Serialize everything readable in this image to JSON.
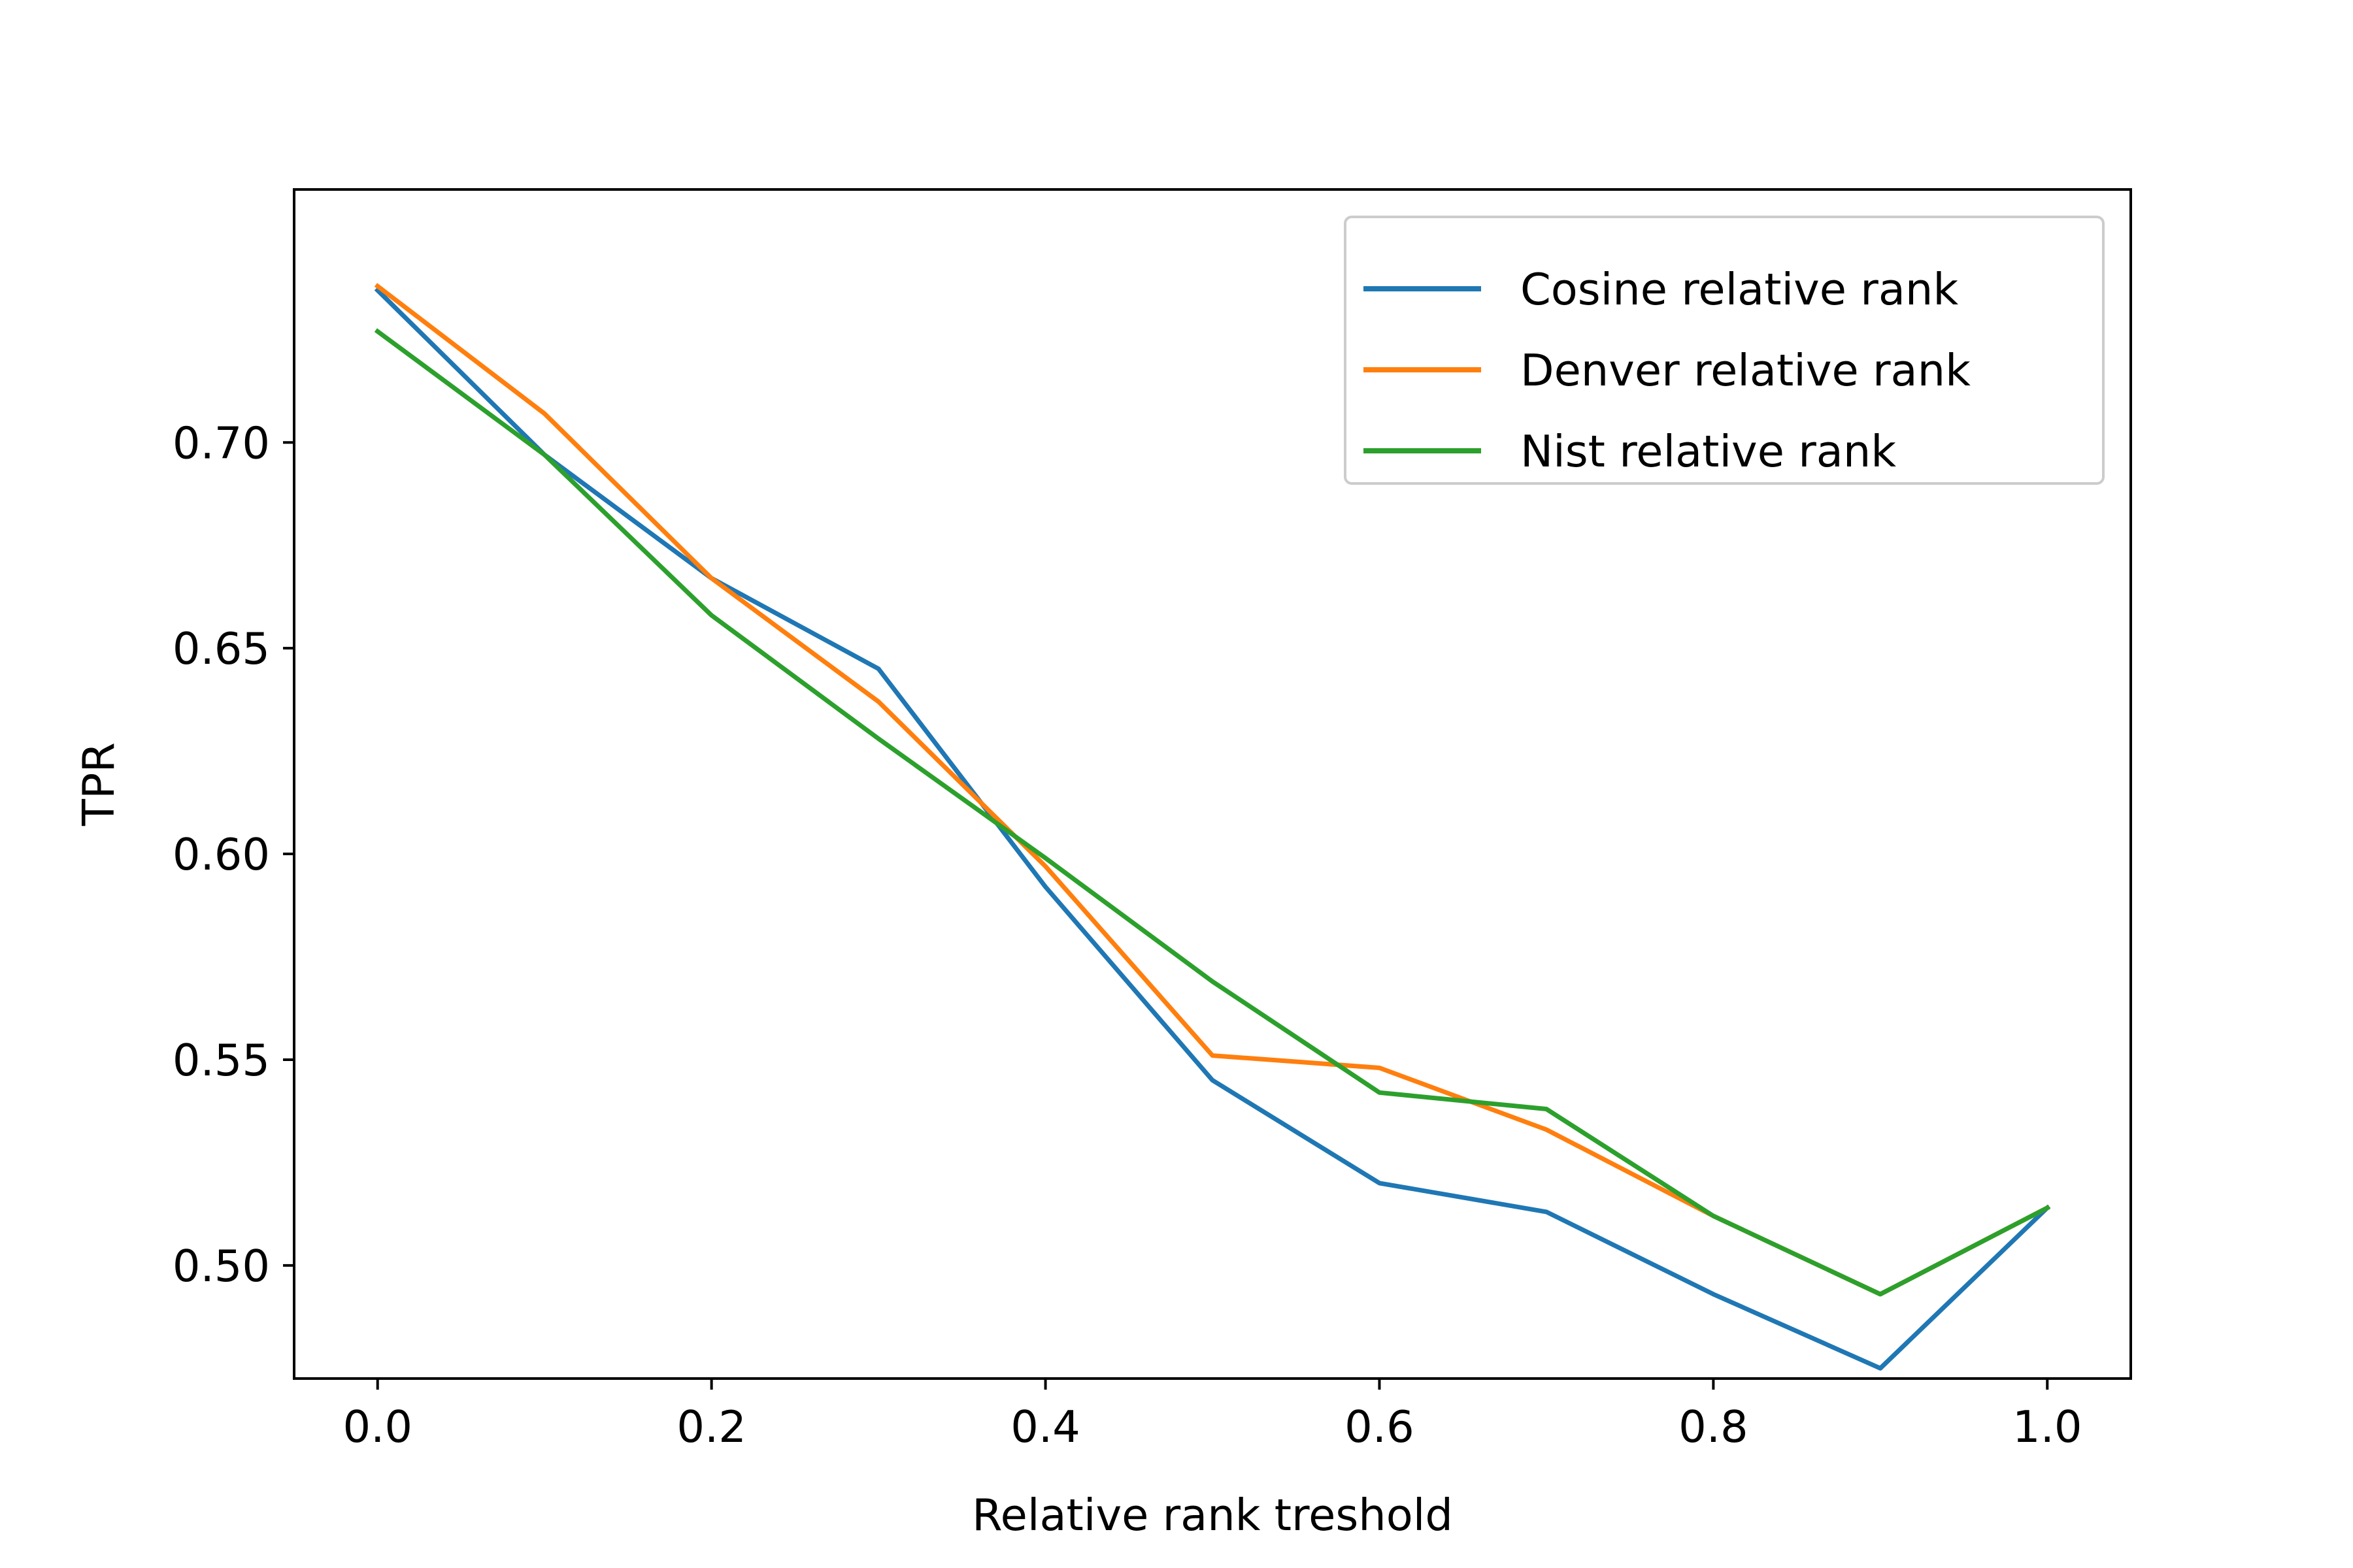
{
  "chart_data": {
    "type": "line",
    "title": "",
    "xlabel": "Relative rank treshold",
    "ylabel": "TPR",
    "xlim": [
      -0.05,
      1.05
    ],
    "ylim": [
      0.4725,
      0.7615
    ],
    "x": [
      0.0,
      0.1,
      0.2,
      0.3,
      0.4,
      0.5,
      0.6,
      0.7,
      0.8,
      0.9,
      1.0
    ],
    "xticks": [
      0.0,
      0.2,
      0.4,
      0.6,
      0.8,
      1.0
    ],
    "xtick_labels": [
      "0.0",
      "0.2",
      "0.4",
      "0.6",
      "0.8",
      "1.0"
    ],
    "yticks": [
      0.5,
      0.55,
      0.6,
      0.65,
      0.7
    ],
    "ytick_labels": [
      "0.50",
      "0.55",
      "0.60",
      "0.65",
      "0.70"
    ],
    "grid": false,
    "legend_position": "top-right",
    "series": [
      {
        "name": "Cosine relative rank",
        "color": "#1f77b4",
        "values": [
          0.737,
          0.697,
          0.667,
          0.645,
          0.592,
          0.545,
          0.52,
          0.513,
          0.493,
          0.475,
          0.514
        ]
      },
      {
        "name": "Denver relative rank",
        "color": "#ff7f0e",
        "values": [
          0.738,
          0.707,
          0.667,
          0.637,
          0.597,
          0.551,
          0.548,
          0.533,
          0.512,
          0.493,
          0.514
        ]
      },
      {
        "name": "Nist relative rank",
        "color": "#2ca02c",
        "values": [
          0.727,
          0.697,
          0.658,
          0.628,
          0.599,
          0.569,
          0.542,
          0.538,
          0.512,
          0.493,
          0.514
        ]
      }
    ]
  }
}
